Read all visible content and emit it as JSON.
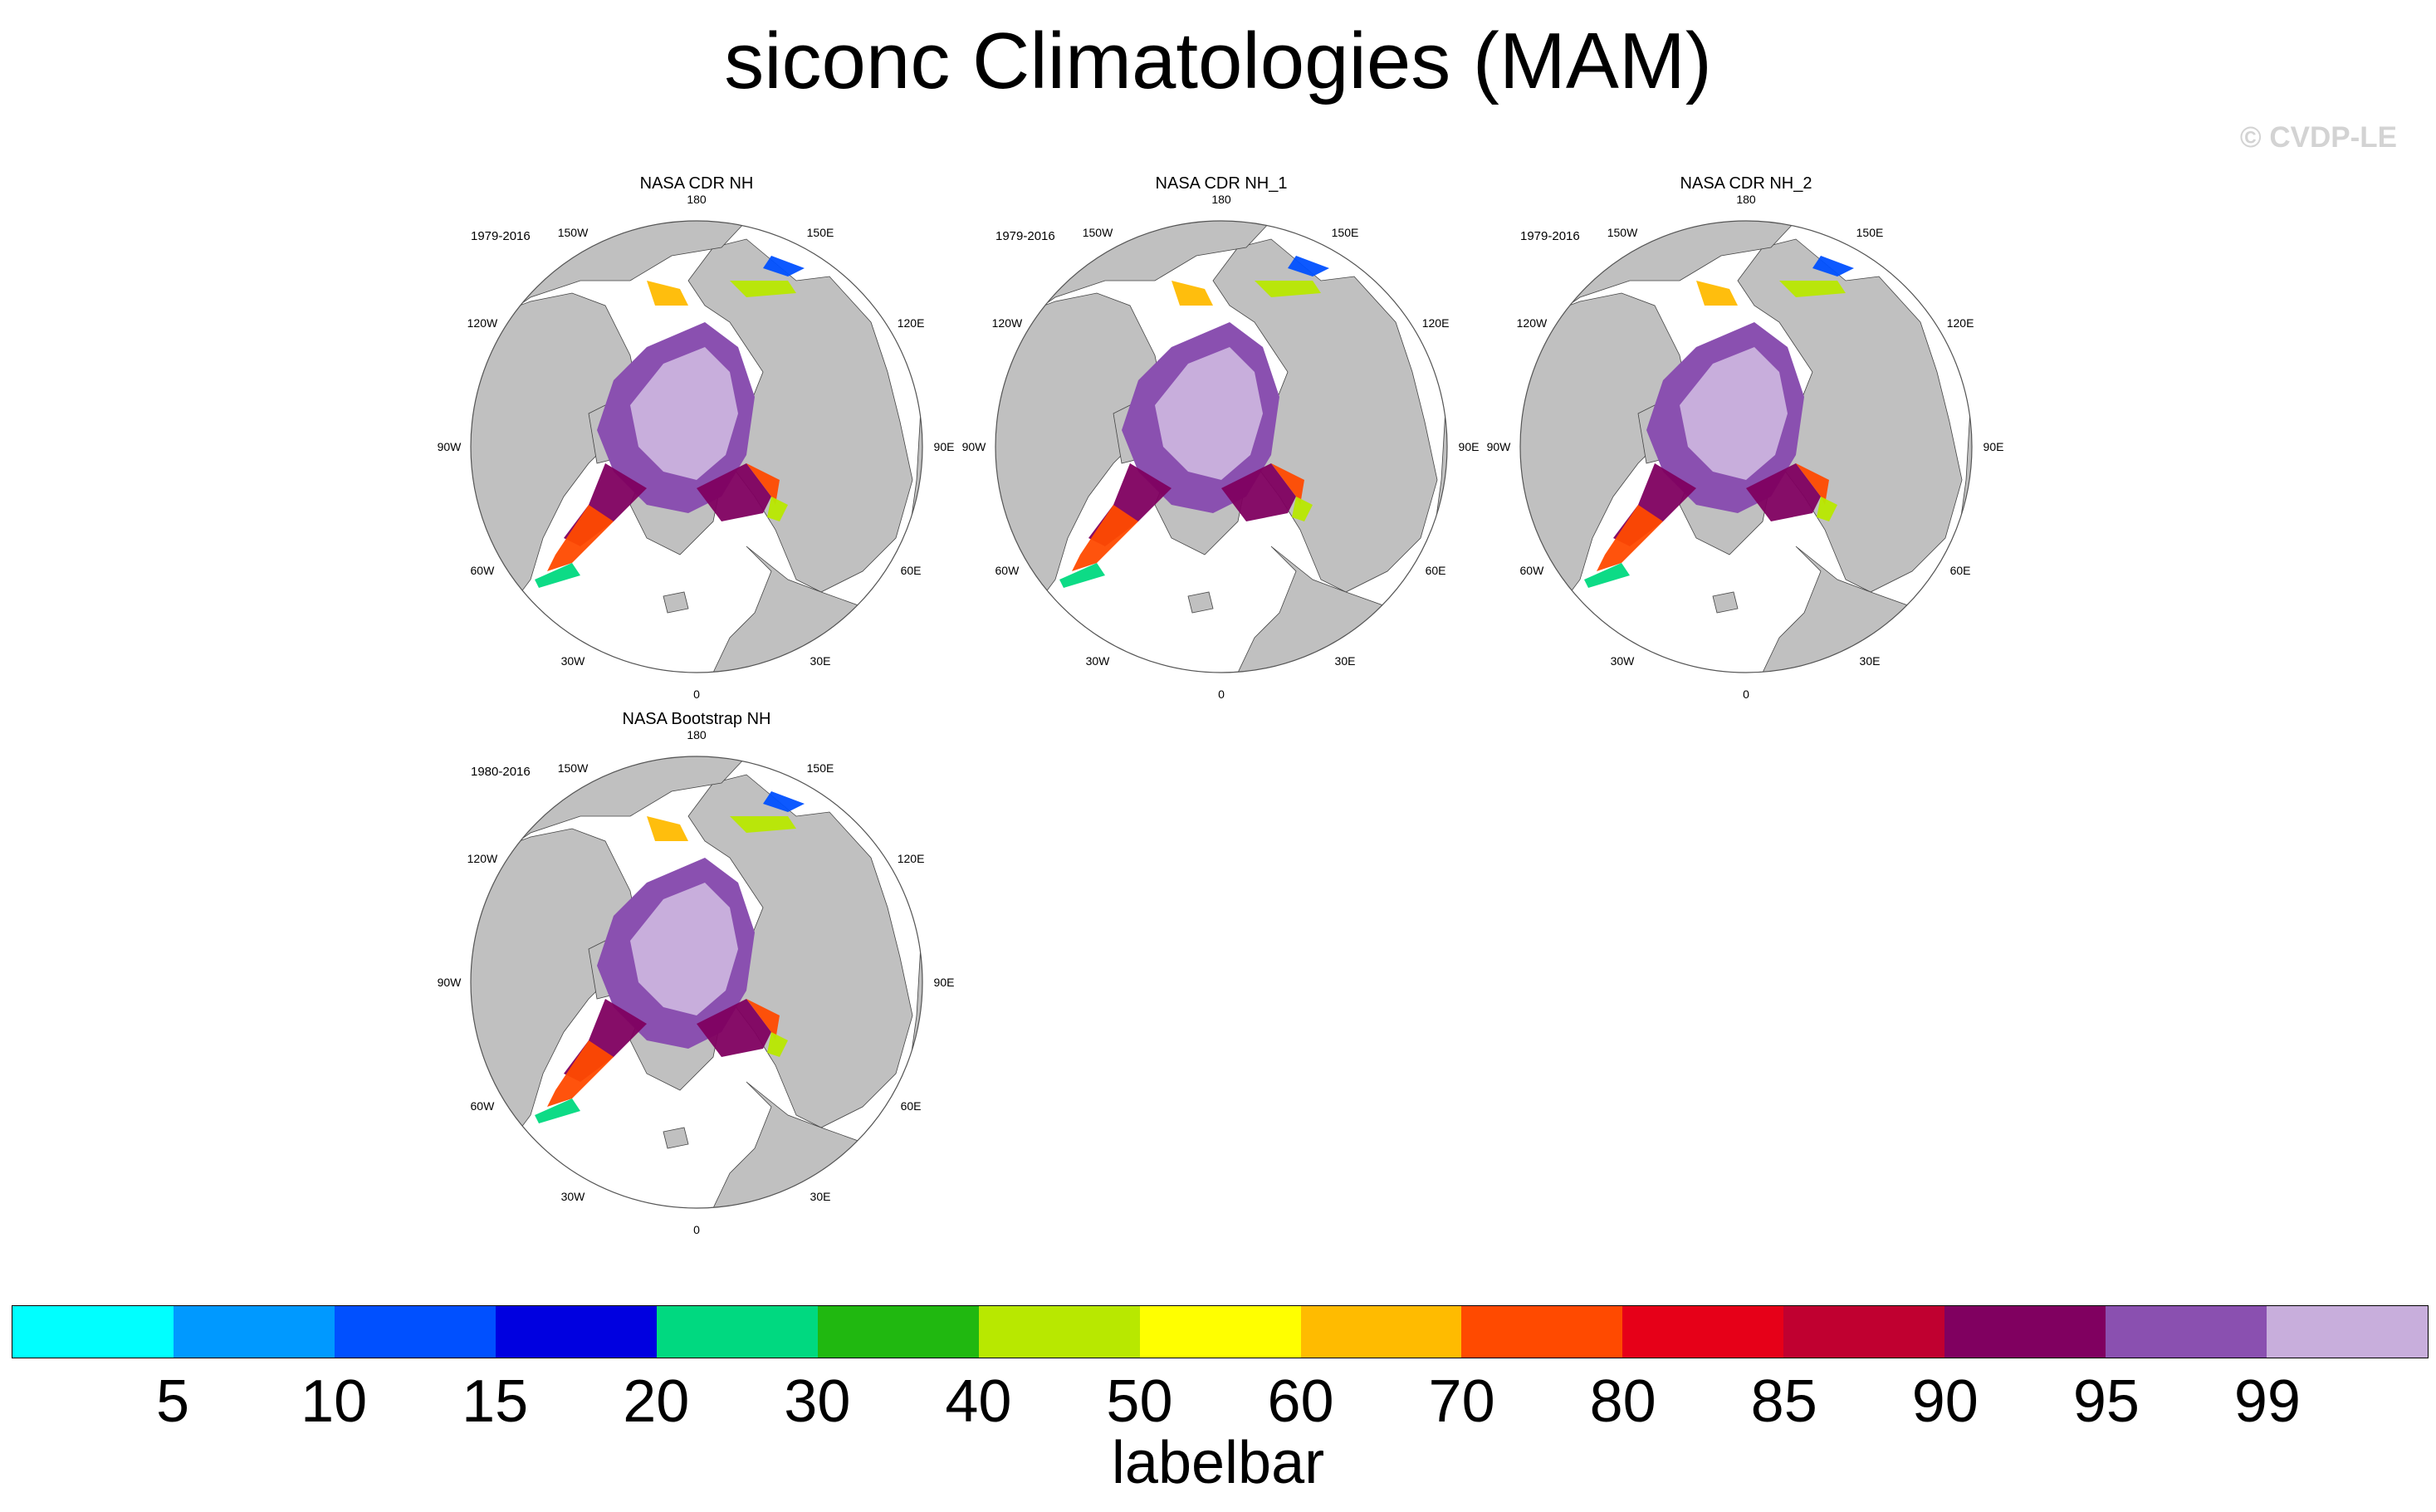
{
  "title": "siconc Climatologies (MAM)",
  "watermark": "© CVDP-LE",
  "panels": [
    {
      "title": "NASA CDR NH",
      "period": "1979-2016"
    },
    {
      "title": "NASA CDR NH_1",
      "period": "1979-2016"
    },
    {
      "title": "NASA CDR NH_2",
      "period": "1979-2016"
    },
    {
      "title": "NASA Bootstrap NH",
      "period": "1980-2016"
    }
  ],
  "longitude_labels": [
    "0",
    "30E",
    "60E",
    "90E",
    "120E",
    "150E",
    "180",
    "150W",
    "120W",
    "90W",
    "60W",
    "30W"
  ],
  "labelbar": {
    "title": "labelbar",
    "labels": [
      "5",
      "10",
      "15",
      "20",
      "30",
      "40",
      "50",
      "60",
      "70",
      "80",
      "85",
      "90",
      "95",
      "99"
    ],
    "colors": [
      "#00ffff",
      "#0099ff",
      "#0050ff",
      "#0000e0",
      "#00d980",
      "#20b810",
      "#b8e800",
      "#ffff00",
      "#ffbb00",
      "#ff4a00",
      "#e60018",
      "#c00030",
      "#800060",
      "#8a50b0",
      "#c8aedc"
    ]
  },
  "colors": {
    "land": "#c0c0c0",
    "ocean": "#ffffff"
  }
}
